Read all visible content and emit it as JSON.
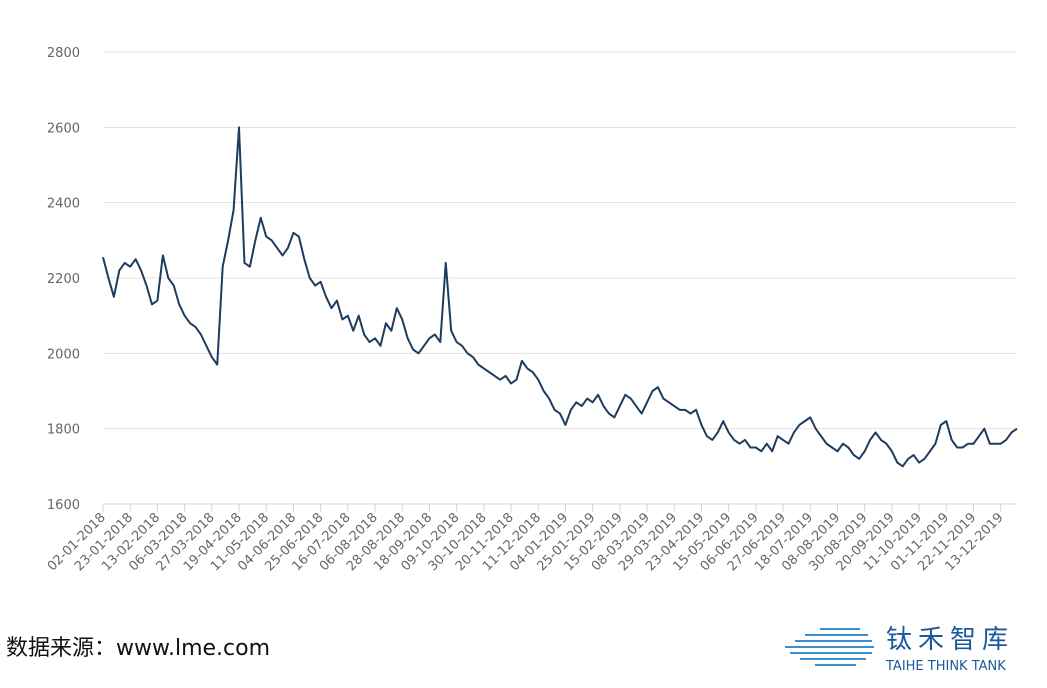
{
  "chart_data": {
    "type": "line",
    "categories": [
      "02-01-2018",
      null,
      null,
      null,
      null,
      "23-01-2018",
      null,
      null,
      null,
      null,
      "13-02-2018",
      null,
      null,
      null,
      null,
      "06-03-2018",
      null,
      null,
      null,
      null,
      "27-03-2018",
      null,
      null,
      null,
      null,
      "19-04-2018",
      null,
      null,
      null,
      null,
      "11-05-2018",
      null,
      null,
      null,
      null,
      "04-06-2018",
      null,
      null,
      null,
      null,
      "25-06-2018",
      null,
      null,
      null,
      null,
      "16-07-2018",
      null,
      null,
      null,
      null,
      "06-08-2018",
      null,
      null,
      null,
      null,
      "28-08-2018",
      null,
      null,
      null,
      null,
      "18-09-2018",
      null,
      null,
      null,
      null,
      "09-10-2018",
      null,
      null,
      null,
      null,
      "30-10-2018",
      null,
      null,
      null,
      null,
      "20-11-2018",
      null,
      null,
      null,
      null,
      "11-12-2018",
      null,
      null,
      null,
      null,
      "04-01-2019",
      null,
      null,
      null,
      null,
      "25-01-2019",
      null,
      null,
      null,
      null,
      "15-02-2019",
      null,
      null,
      null,
      null,
      "08-03-2019",
      null,
      null,
      null,
      null,
      "29-03-2019",
      null,
      null,
      null,
      null,
      "23-04-2019",
      null,
      null,
      null,
      null,
      "15-05-2019",
      null,
      null,
      null,
      null,
      "06-06-2019",
      null,
      null,
      null,
      null,
      "27-06-2019",
      null,
      null,
      null,
      null,
      "18-07-2019",
      null,
      null,
      null,
      null,
      "08-08-2019",
      null,
      null,
      null,
      null,
      "30-08-2019",
      null,
      null,
      null,
      null,
      "20-09-2019",
      null,
      null,
      null,
      null,
      "11-10-2019",
      null,
      null,
      null,
      null,
      "01-11-2019",
      null,
      null,
      null,
      null,
      "22-11-2019",
      null,
      null,
      null,
      null,
      "13-12-2019",
      null,
      null,
      null
    ],
    "series": [
      {
        "color": "#1d3c5e",
        "values": [
          2255,
          2200,
          2150,
          2220,
          2240,
          2230,
          2250,
          2220,
          2180,
          2130,
          2140,
          2260,
          2200,
          2180,
          2130,
          2100,
          2080,
          2070,
          2050,
          2020,
          1990,
          1970,
          2230,
          2300,
          2380,
          2600,
          2240,
          2230,
          2300,
          2360,
          2310,
          2300,
          2280,
          2260,
          2280,
          2320,
          2310,
          2250,
          2200,
          2180,
          2190,
          2150,
          2120,
          2140,
          2090,
          2100,
          2060,
          2100,
          2050,
          2030,
          2040,
          2020,
          2080,
          2060,
          2120,
          2090,
          2040,
          2010,
          2000,
          2020,
          2040,
          2050,
          2030,
          2240,
          2060,
          2030,
          2020,
          2000,
          1990,
          1970,
          1960,
          1950,
          1940,
          1930,
          1940,
          1920,
          1930,
          1980,
          1960,
          1950,
          1930,
          1900,
          1880,
          1850,
          1840,
          1810,
          1850,
          1870,
          1860,
          1880,
          1870,
          1890,
          1860,
          1840,
          1830,
          1860,
          1890,
          1880,
          1860,
          1840,
          1870,
          1900,
          1910,
          1880,
          1870,
          1860,
          1850,
          1850,
          1840,
          1850,
          1810,
          1780,
          1770,
          1790,
          1820,
          1790,
          1770,
          1760,
          1770,
          1750,
          1750,
          1740,
          1760,
          1740,
          1780,
          1770,
          1760,
          1790,
          1810,
          1820,
          1830,
          1800,
          1780,
          1760,
          1750,
          1740,
          1760,
          1750,
          1730,
          1720,
          1740,
          1770,
          1790,
          1770,
          1760,
          1740,
          1710,
          1700,
          1720,
          1730,
          1710,
          1720,
          1740,
          1760,
          1810,
          1820,
          1770,
          1750,
          1750,
          1760,
          1760,
          1780,
          1800,
          1760,
          1760,
          1760,
          1770,
          1790,
          1800
        ]
      }
    ],
    "ylim": [
      1600,
      2800
    ],
    "yticks": [
      1600,
      1800,
      2000,
      2200,
      2400,
      2600,
      2800
    ],
    "grid": true
  },
  "footer": {
    "source": "数据来源：www.lme.com",
    "logo_cn": "钛禾智库",
    "logo_en": "TAIHE THINK TANK"
  }
}
